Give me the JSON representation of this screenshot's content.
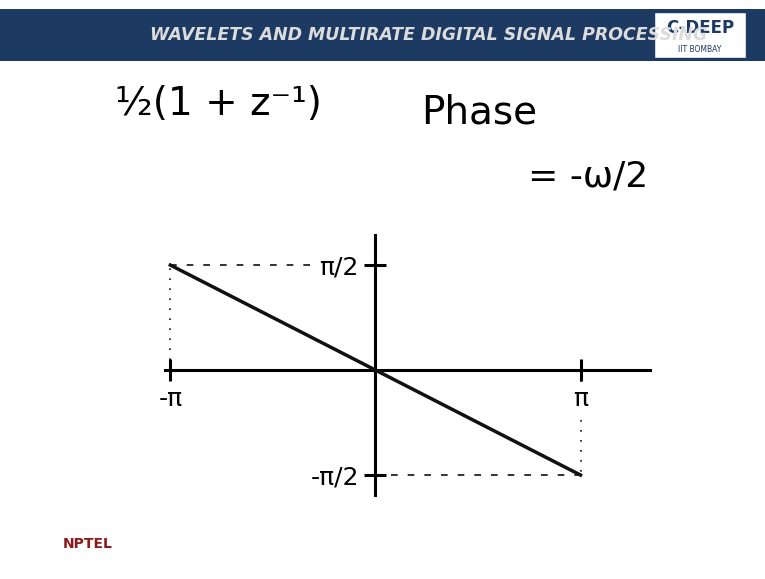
{
  "chart_data": {
    "type": "line",
    "title": "Phase",
    "annotations": [
      "½(1 + z⁻¹)",
      "= -ω/2"
    ],
    "x": [
      -3.14159,
      3.14159
    ],
    "values": [
      1.5708,
      -1.5708
    ],
    "color": "#111111",
    "xlim": [
      -3.22,
      4.21
    ],
    "ylim": [
      -1.87,
      2.02
    ],
    "xticks": [
      {
        "value": -3.14159,
        "label": "-π"
      },
      {
        "value": 3.14159,
        "label": "π"
      }
    ],
    "yticks": [
      {
        "value": 1.5708,
        "label": "π/2"
      },
      {
        "value": -1.5708,
        "label": "-π/2"
      }
    ],
    "grid": false
  },
  "header": {
    "title": "WAVELETS AND MULTIRATE DIGITAL SIGNAL PROCESSING",
    "badge": "C-DEEP",
    "institute": "IIT BOMBAY"
  },
  "logo": "NPTEL"
}
